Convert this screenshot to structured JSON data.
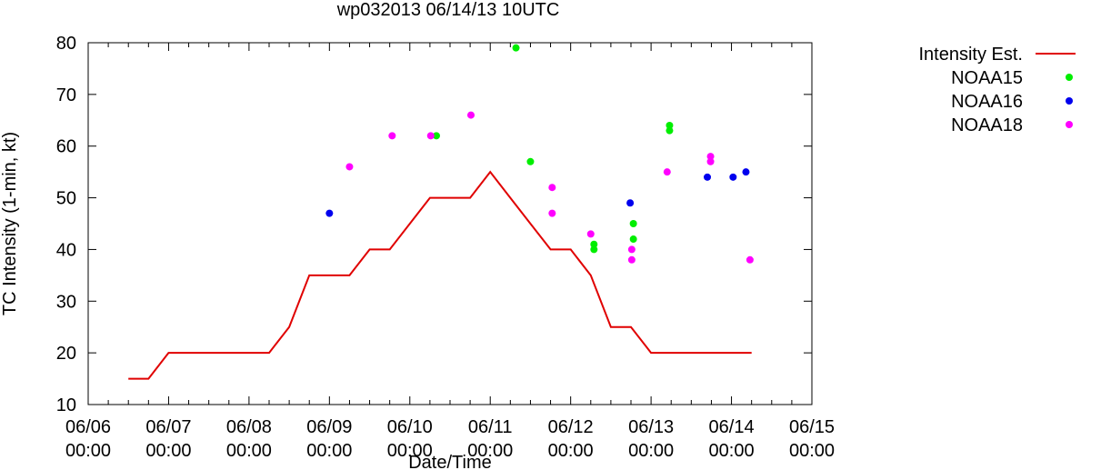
{
  "chart_data": {
    "type": "scatter",
    "title": "wp032013 06/14/13 10UTC",
    "xlabel": "Date/Time",
    "ylabel": "TC Intensity (1-min, kt)",
    "xlim": [
      0,
      9
    ],
    "ylim": [
      10,
      80
    ],
    "x_unit": "days since 06/06 00:00",
    "x_ticks": [
      {
        "x": 0,
        "line1": "06/06",
        "line2": "00:00"
      },
      {
        "x": 1,
        "line1": "06/07",
        "line2": "00:00"
      },
      {
        "x": 2,
        "line1": "06/08",
        "line2": "00:00"
      },
      {
        "x": 3,
        "line1": "06/09",
        "line2": "00:00"
      },
      {
        "x": 4,
        "line1": "06/10",
        "line2": "00:00"
      },
      {
        "x": 5,
        "line1": "06/11",
        "line2": "00:00"
      },
      {
        "x": 6,
        "line1": "06/12",
        "line2": "00:00"
      },
      {
        "x": 7,
        "line1": "06/13",
        "line2": "00:00"
      },
      {
        "x": 8,
        "line1": "06/14",
        "line2": "00:00"
      },
      {
        "x": 9,
        "line1": "06/15",
        "line2": "00:00"
      }
    ],
    "y_ticks": [
      "10",
      "20",
      "30",
      "40",
      "50",
      "60",
      "70",
      "80"
    ],
    "grid": false,
    "legend_position": "outside-right",
    "series": [
      {
        "name": "Intensity Est.",
        "kind": "line",
        "color": "#e00000",
        "points": [
          [
            0.5,
            15
          ],
          [
            0.75,
            15
          ],
          [
            1,
            20
          ],
          [
            1.25,
            20
          ],
          [
            1.5,
            20
          ],
          [
            1.75,
            20
          ],
          [
            2,
            20
          ],
          [
            2.25,
            20
          ],
          [
            2.5,
            25
          ],
          [
            2.75,
            35
          ],
          [
            3,
            35
          ],
          [
            3.25,
            35
          ],
          [
            3.5,
            40
          ],
          [
            3.75,
            40
          ],
          [
            4,
            45
          ],
          [
            4.25,
            50
          ],
          [
            4.5,
            50
          ],
          [
            4.75,
            50
          ],
          [
            5,
            55
          ],
          [
            5.25,
            50
          ],
          [
            5.5,
            45
          ],
          [
            5.75,
            40
          ],
          [
            6,
            40
          ],
          [
            6.25,
            35
          ],
          [
            6.5,
            25
          ],
          [
            6.75,
            25
          ],
          [
            7,
            20
          ],
          [
            7.25,
            20
          ],
          [
            7.5,
            20
          ],
          [
            7.75,
            20
          ],
          [
            8,
            20
          ],
          [
            8.25,
            20
          ]
        ]
      },
      {
        "name": "NOAA15",
        "kind": "scatter",
        "color": "#00ee00",
        "points": [
          [
            4.33,
            62
          ],
          [
            5.32,
            79
          ],
          [
            5.5,
            57
          ],
          [
            6.29,
            41
          ],
          [
            6.29,
            40
          ],
          [
            6.78,
            45
          ],
          [
            6.78,
            42
          ],
          [
            7.23,
            64
          ],
          [
            7.23,
            63
          ]
        ]
      },
      {
        "name": "NOAA16",
        "kind": "scatter",
        "color": "#0000ee",
        "points": [
          [
            3,
            47
          ],
          [
            6.74,
            49
          ],
          [
            7.7,
            54
          ],
          [
            8.02,
            54
          ],
          [
            8.18,
            55
          ]
        ]
      },
      {
        "name": "NOAA18",
        "kind": "scatter",
        "color": "#ff00ff",
        "points": [
          [
            3.25,
            56
          ],
          [
            3.78,
            62
          ],
          [
            4.26,
            62
          ],
          [
            4.76,
            66
          ],
          [
            5.77,
            52
          ],
          [
            5.77,
            47
          ],
          [
            6.25,
            43
          ],
          [
            6.76,
            40
          ],
          [
            6.76,
            38
          ],
          [
            7.2,
            55
          ],
          [
            7.74,
            58
          ],
          [
            7.74,
            57
          ],
          [
            8.23,
            38
          ]
        ]
      }
    ]
  }
}
